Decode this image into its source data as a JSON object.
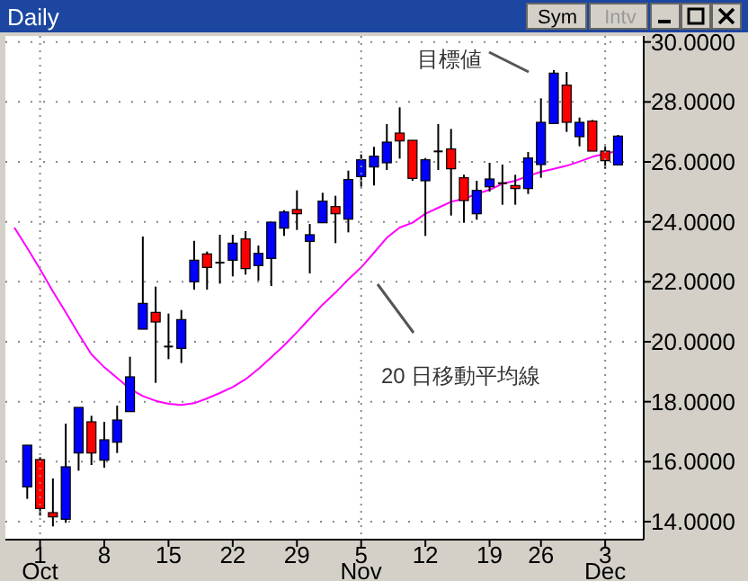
{
  "chart_data": {
    "type": "candlestick",
    "title": "Daily",
    "categories": [
      null,
      null,
      "1",
      null,
      null,
      null,
      null,
      "8",
      null,
      null,
      null,
      null,
      "15",
      null,
      null,
      null,
      null,
      "22",
      null,
      null,
      null,
      null,
      "29",
      null,
      null,
      null,
      null,
      "5",
      null,
      null,
      null,
      null,
      "12",
      null,
      null,
      null,
      null,
      "19",
      null,
      null,
      null,
      "26",
      null,
      null,
      null,
      null,
      "3",
      null
    ],
    "ohlc": [
      null,
      [
        15.16,
        16.55,
        14.76,
        16.55
      ],
      [
        16.07,
        16.15,
        14.2,
        14.44
      ],
      [
        14.3,
        15.44,
        13.84,
        14.16
      ],
      [
        14.08,
        17.27,
        13.96,
        15.83
      ],
      [
        16.29,
        17.81,
        15.7,
        17.81
      ],
      [
        17.33,
        17.53,
        15.89,
        16.29
      ],
      [
        16.05,
        17.33,
        15.8,
        16.73
      ],
      [
        16.65,
        17.87,
        16.29,
        17.39
      ],
      [
        17.67,
        19.5,
        17.67,
        18.83
      ],
      [
        20.42,
        23.51,
        20.42,
        21.28
      ],
      [
        20.98,
        21.84,
        18.63,
        20.66
      ],
      [
        19.84,
        20.94,
        19.42,
        19.84
      ],
      [
        19.78,
        21.06,
        19.29,
        20.74
      ],
      [
        22.0,
        23.37,
        21.74,
        22.72
      ],
      [
        22.93,
        23.01,
        21.74,
        22.48
      ],
      [
        22.64,
        23.57,
        21.94,
        22.64
      ],
      [
        22.72,
        23.57,
        22.18,
        23.29
      ],
      [
        23.43,
        23.69,
        22.24,
        22.44
      ],
      [
        22.54,
        23.21,
        22.04,
        22.95
      ],
      [
        22.78,
        23.99,
        21.86,
        23.99
      ],
      [
        23.79,
        24.39,
        23.53,
        24.33
      ],
      [
        24.41,
        25.05,
        23.73,
        24.27
      ],
      [
        23.35,
        23.93,
        22.28,
        23.57
      ],
      [
        23.97,
        24.97,
        23.97,
        24.69
      ],
      [
        24.51,
        24.87,
        23.29,
        24.27
      ],
      [
        24.09,
        25.71,
        23.65,
        25.41
      ],
      [
        25.51,
        26.25,
        25.17,
        26.07
      ],
      [
        25.83,
        26.5,
        25.21,
        26.19
      ],
      [
        25.97,
        27.26,
        25.73,
        26.66
      ],
      [
        26.96,
        27.82,
        26.11,
        26.7
      ],
      [
        26.72,
        26.72,
        25.37,
        25.45
      ],
      [
        25.37,
        26.13,
        23.53,
        26.07
      ],
      [
        26.35,
        27.26,
        25.73,
        26.35
      ],
      [
        26.43,
        27.1,
        24.21,
        25.77
      ],
      [
        25.47,
        25.57,
        23.97,
        24.71
      ],
      [
        24.27,
        25.37,
        24.07,
        25.05
      ],
      [
        25.17,
        25.97,
        25.01,
        25.43
      ],
      [
        25.29,
        25.91,
        24.57,
        25.29
      ],
      [
        25.21,
        25.57,
        24.57,
        25.11
      ],
      [
        25.11,
        26.33,
        24.93,
        26.13
      ],
      [
        25.91,
        28.12,
        25.47,
        27.32
      ],
      [
        27.28,
        29.06,
        27.28,
        28.96
      ],
      [
        28.56,
        29.0,
        27.0,
        27.32
      ],
      [
        26.84,
        27.48,
        26.52,
        27.32
      ],
      [
        27.36,
        27.4,
        26.36,
        26.36
      ],
      [
        26.36,
        26.52,
        25.77,
        26.04
      ],
      [
        25.9,
        26.9,
        25.9,
        26.86
      ]
    ],
    "series": [
      {
        "type": "line",
        "color": "#ff00ff",
        "values": [
          23.81,
          23.13,
          22.42,
          21.68,
          20.98,
          20.26,
          19.58,
          19.15,
          18.79,
          18.43,
          18.19,
          18.03,
          17.93,
          17.89,
          17.95,
          18.11,
          18.29,
          18.49,
          18.75,
          19.09,
          19.48,
          19.88,
          20.32,
          20.78,
          21.24,
          21.64,
          22.08,
          22.48,
          22.97,
          23.47,
          23.81,
          23.97,
          24.27,
          24.47,
          24.67,
          24.77,
          24.93,
          25.07,
          25.27,
          25.37,
          25.53,
          25.67,
          25.77,
          25.87,
          26.01,
          26.17,
          26.27,
          26.37
        ]
      }
    ],
    "ylim": [
      13.4,
      30.2
    ],
    "yticks": [
      {
        "value": 14,
        "label": "14.0000"
      },
      {
        "value": 16,
        "label": "16.0000"
      },
      {
        "value": 18,
        "label": "18.0000"
      },
      {
        "value": 20,
        "label": "20.0000"
      },
      {
        "value": 22,
        "label": "22.0000"
      },
      {
        "value": 24,
        "label": "24.0000"
      },
      {
        "value": 26,
        "label": "26.0000"
      },
      {
        "value": 28,
        "label": "28.0000"
      },
      {
        "value": 30,
        "label": "30.0000"
      }
    ],
    "grid": true,
    "annotations": [
      "Sym",
      "Intv",
      "目標値",
      "20 日移動平均線",
      "Oct",
      "Nov",
      "Dec"
    ]
  }
}
